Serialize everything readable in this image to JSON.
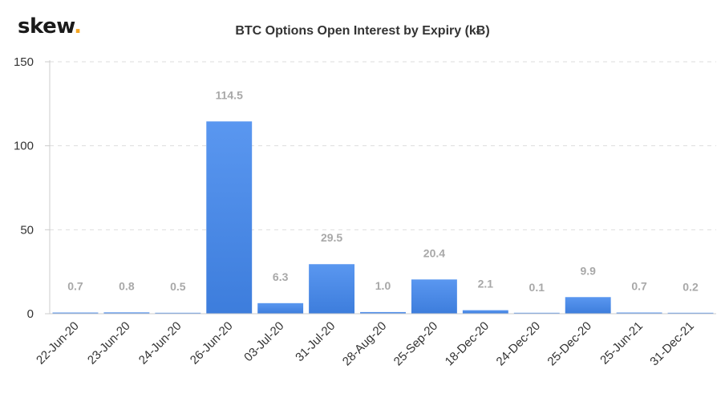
{
  "brand": {
    "name": "skew",
    "dot": "."
  },
  "chart_data": {
    "type": "bar",
    "title": "BTC Options Open Interest by Expiry (kɃ)",
    "xlabel": "",
    "ylabel": "",
    "ylim": [
      0,
      150
    ],
    "yticks": [
      "0",
      "50",
      "100",
      "150"
    ],
    "categories": [
      "22-Jun-20",
      "23-Jun-20",
      "24-Jun-20",
      "26-Jun-20",
      "03-Jul-20",
      "31-Jul-20",
      "28-Aug-20",
      "25-Sep-20",
      "18-Dec-20",
      "24-Dec-20",
      "25-Dec-20",
      "25-Jun-21",
      "31-Dec-21"
    ],
    "values": [
      0.7,
      0.8,
      0.5,
      114.5,
      6.3,
      29.5,
      1.0,
      20.4,
      2.1,
      0.1,
      9.9,
      0.7,
      0.2
    ],
    "data_labels": [
      "0.7",
      "0.8",
      "0.5",
      "114.5",
      "6.3",
      "29.5",
      "1.0",
      "20.4",
      "2.1",
      "0.1",
      "9.9",
      "0.7",
      "0.2"
    ],
    "bar_color": "#4a8ae8",
    "grid": true,
    "legend": false
  }
}
